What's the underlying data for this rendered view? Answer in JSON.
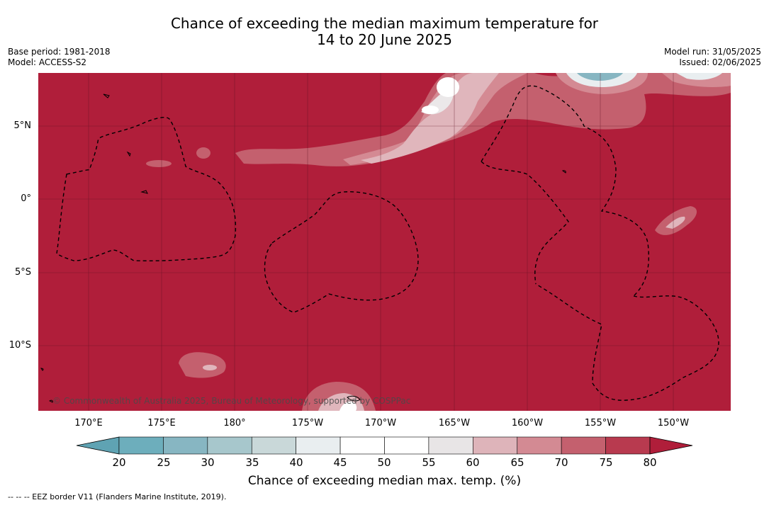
{
  "header": {
    "title_line1": "Chance of exceeding the median maximum temperature for",
    "title_line2": "14 to 20 June 2025",
    "base_period": "Base period: 1981-2018",
    "model": "Model: ACCESS-S2",
    "model_run": "Model run: 31/05/2025",
    "issued": "Issued: 02/06/2025"
  },
  "map": {
    "lat_labels": [
      "5°N",
      "0°",
      "5°S",
      "10°S"
    ],
    "lon_labels": [
      "170°E",
      "175°E",
      "180°",
      "175°W",
      "170°W",
      "165°W",
      "160°W",
      "155°W",
      "150°W"
    ],
    "credit": "© Commonwealth of Australia 2025, Bureau of Meteorology, supported by COSPPac",
    "colors": {
      "above_80": "#b01e3a",
      "c75_80": "#b83a4f",
      "c70_75": "#c4606e",
      "c65_70": "#d48a93",
      "c60_65": "#e0b6bc",
      "c55_60": "#ebe8e9",
      "c45_55": "#ffffff",
      "eez_border": "#000000",
      "grid": "#5a1020"
    }
  },
  "colorbar": {
    "ticks": [
      "20",
      "25",
      "30",
      "35",
      "40",
      "45",
      "50",
      "55",
      "60",
      "65",
      "70",
      "75",
      "80"
    ],
    "colors": [
      "#5fa3b3",
      "#6daebc",
      "#87b6c2",
      "#a7c7cc",
      "#c9d8d9",
      "#e9eef0",
      "#ffffff",
      "#ffffff",
      "#e8e5e6",
      "#deb4ba",
      "#d38a93",
      "#c4606e",
      "#b83a4f",
      "#b01e3a"
    ],
    "label": "Chance of exceeding median max. temp. (%)"
  },
  "footnote": "--  --  -- EEZ border V11 (Flanders Marine Institute, 2019)."
}
